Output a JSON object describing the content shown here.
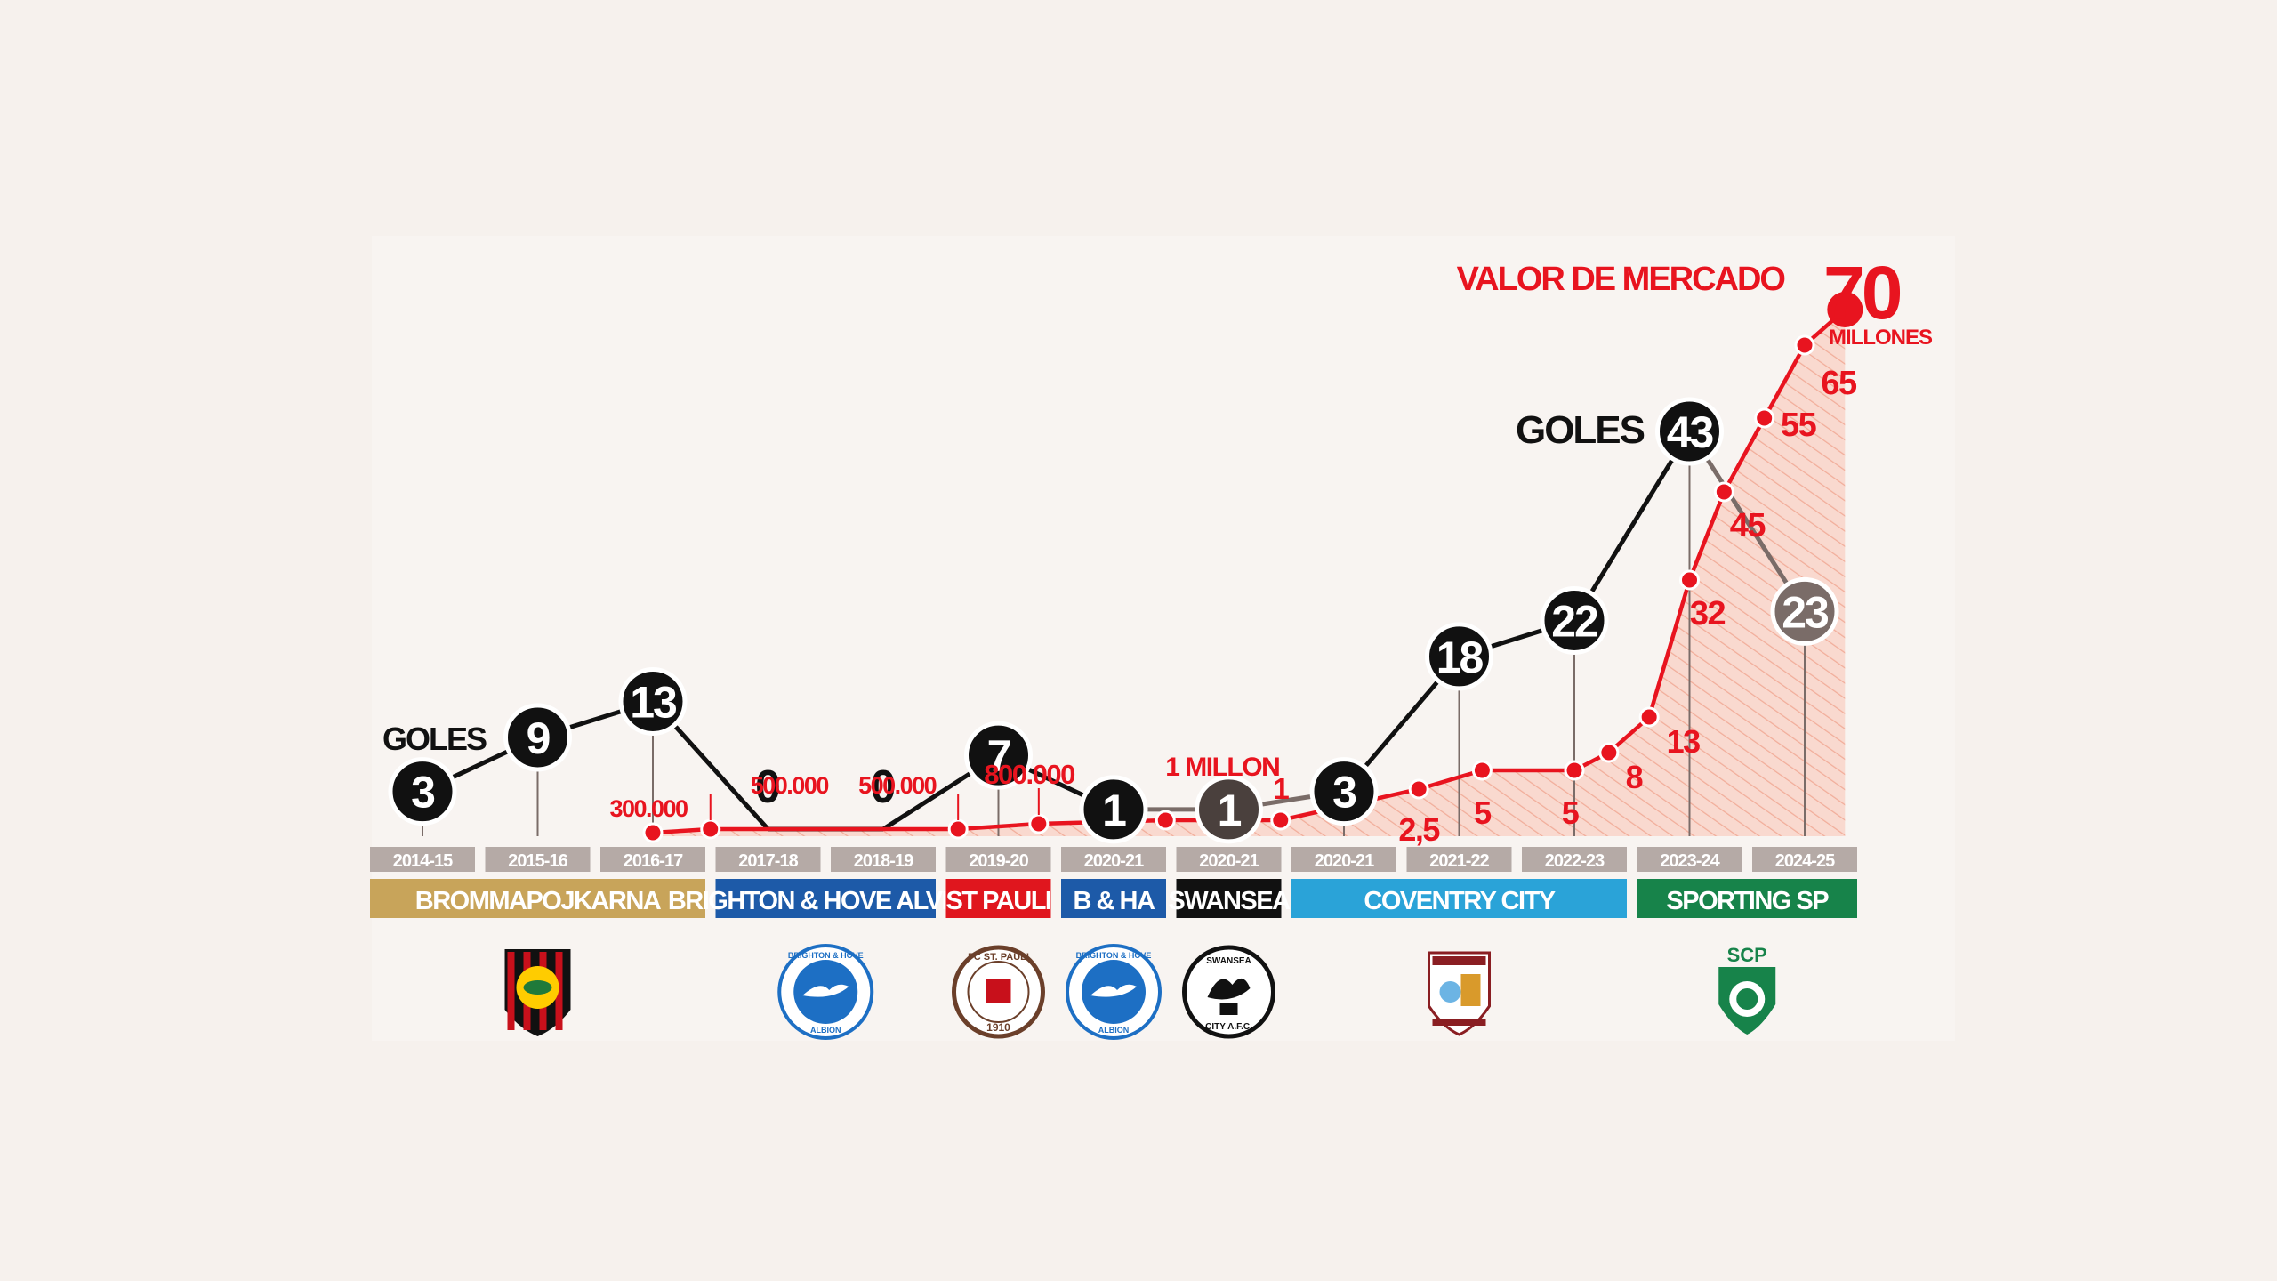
{
  "chart_data": {
    "type": "line",
    "seasons": [
      "2014-15",
      "2015-16",
      "2016-17",
      "2017-18",
      "2018-19",
      "2019-20",
      "2020-21",
      "2020-21",
      "2020-21",
      "2021-22",
      "2022-23",
      "2023-24",
      "2024-25"
    ],
    "goals_series": {
      "label": "GOLES",
      "values": [
        3,
        9,
        13,
        0,
        0,
        7,
        1,
        1,
        3,
        18,
        22,
        43,
        23
      ]
    },
    "market_value_series": {
      "label": "VALOR DE MERCADO",
      "points": [
        {
          "season_index": 2.0,
          "value": 0.3,
          "label": "300.000"
        },
        {
          "season_index": 2.5,
          "value": 0.5,
          "label": "500.000"
        },
        {
          "season_index": 4.65,
          "value": 0.5,
          "label": "500.000"
        },
        {
          "season_index": 5.35,
          "value": 0.8,
          "label": "800.000"
        },
        {
          "season_index": 6.45,
          "value": 1,
          "label": "1 MILLON"
        },
        {
          "season_index": 7.45,
          "value": 1,
          "label": "1"
        },
        {
          "season_index": 8.65,
          "value": 2.5,
          "label": "2,5"
        },
        {
          "season_index": 9.2,
          "value": 5,
          "label": "5"
        },
        {
          "season_index": 10.0,
          "value": 5,
          "label": "5"
        },
        {
          "season_index": 10.3,
          "value": 8,
          "label": "8"
        },
        {
          "season_index": 10.65,
          "value": 13,
          "label": "13"
        },
        {
          "season_index": 11.0,
          "value": 32,
          "label": "32"
        },
        {
          "season_index": 11.3,
          "value": 45,
          "label": "45"
        },
        {
          "season_index": 11.65,
          "value": 55,
          "label": "55"
        },
        {
          "season_index": 12.0,
          "value": 65,
          "label": "65"
        },
        {
          "season_index": 12.35,
          "value": 70,
          "label": "70"
        }
      ],
      "final_label": "70",
      "final_unit": "MILLONES"
    },
    "teams": [
      {
        "name": "BROMMAPOJKARNA",
        "from": 0,
        "to": 2,
        "color": "#c8a45a",
        "text_color": "#ffffff"
      },
      {
        "name": "BRIGHTON & HOVE ALVION",
        "from": 3,
        "to": 4,
        "color": "#1d5aa8",
        "text_color": "#ffffff"
      },
      {
        "name": "ST PAULI",
        "from": 5,
        "to": 5,
        "color": "#e0161e",
        "text_color": "#ffffff"
      },
      {
        "name": "B & HA",
        "from": 6,
        "to": 6,
        "color": "#1d5aa8",
        "text_color": "#ffffff"
      },
      {
        "name": "SWANSEA",
        "from": 7,
        "to": 7,
        "color": "#111111",
        "text_color": "#ffffff"
      },
      {
        "name": "COVENTRY CITY",
        "from": 8,
        "to": 10,
        "color": "#2aa3d8",
        "text_color": "#ffffff"
      },
      {
        "name": "SPORTING SP",
        "from": 11,
        "to": 12,
        "color": "#17834a",
        "text_color": "#ffffff"
      }
    ],
    "crests": [
      {
        "team": "BROMMAPOJKARNA",
        "icon": "brommapojkarna-crest-icon",
        "at": 1
      },
      {
        "team": "BRIGHTON & HOVE ALBION",
        "icon": "brighton-crest-icon",
        "at": 3.5,
        "top_text": "BRIGHTON & HOVE",
        "bottom_text": "ALBION"
      },
      {
        "team": "FC ST. PAULI",
        "icon": "st-pauli-crest-icon",
        "at": 5,
        "top_text": "FC ST. PAULI",
        "bottom_text": "1910"
      },
      {
        "team": "BRIGHTON & HOVE ALBION",
        "icon": "brighton-crest-icon",
        "at": 6,
        "top_text": "BRIGHTON & HOVE",
        "bottom_text": "ALBION"
      },
      {
        "team": "SWANSEA",
        "icon": "swansea-crest-icon",
        "at": 7,
        "top_text": "SWANSEA",
        "bottom_text": "CITY A.F.C."
      },
      {
        "team": "COVENTRY CITY",
        "icon": "coventry-crest-icon",
        "at": 9
      },
      {
        "team": "SPORTING CP",
        "icon": "sporting-crest-icon",
        "at": 11.5,
        "top_text": "SCP"
      }
    ],
    "colors": {
      "background": "#f6f1ed",
      "goals_line": "#111111",
      "goals_line_faded": "#7a6c68",
      "market_value": "#e8141f",
      "season_bar": "#b5aaa6",
      "area_fill": "#f8d2c6"
    },
    "grid": false,
    "legend": "none"
  }
}
